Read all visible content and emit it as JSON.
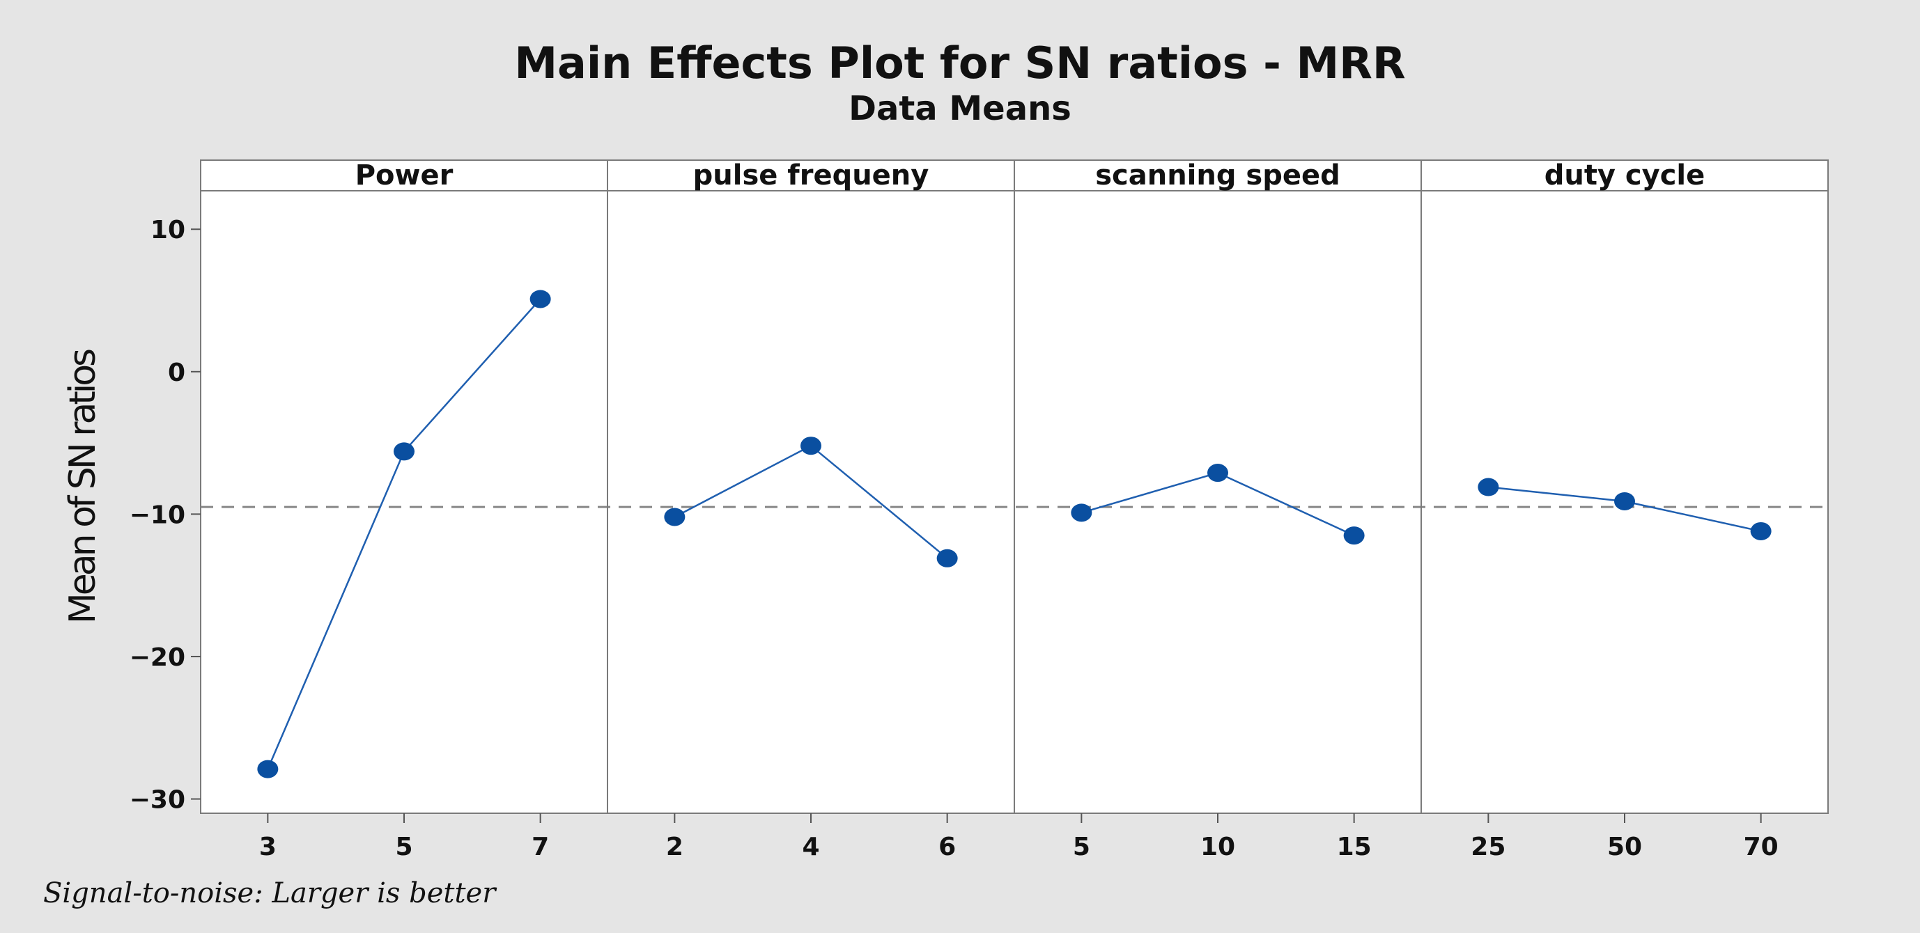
{
  "chart_data": {
    "type": "line",
    "title": "Main Effects Plot for SN ratios - MRR",
    "subtitle": "Data Means",
    "ylabel": "Mean of SN ratios",
    "ylim": [
      -31,
      12.7
    ],
    "yticks": [
      10,
      0,
      -10,
      -20,
      -30
    ],
    "reference_line": -9.5,
    "footnote": "Signal-to-noise: Larger is better",
    "colors": {
      "series": "#1f5fb0",
      "marker": "#0a4fa0",
      "reference": "#888888",
      "background": "#e5e5e5",
      "panel": "#ffffff"
    },
    "panels": [
      {
        "name": "Power",
        "levels": [
          "3",
          "5",
          "7"
        ],
        "values": [
          -27.9,
          -5.6,
          5.1
        ]
      },
      {
        "name": "pulse frequeny",
        "levels": [
          "2",
          "4",
          "6"
        ],
        "values": [
          -10.2,
          -5.2,
          -13.1
        ]
      },
      {
        "name": "scanning speed",
        "levels": [
          "5",
          "10",
          "15"
        ],
        "values": [
          -9.9,
          -7.1,
          -11.5
        ]
      },
      {
        "name": "duty cycle",
        "levels": [
          "25",
          "50",
          "70"
        ],
        "values": [
          -8.1,
          -9.1,
          -11.2
        ]
      }
    ]
  }
}
